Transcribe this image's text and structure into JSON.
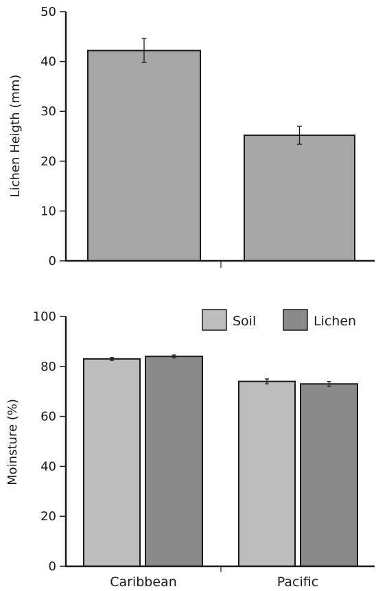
{
  "chart_data": [
    {
      "type": "bar",
      "ylabel": "Lichen Heigth (mm)",
      "xlabel": "",
      "categories": [
        "",
        ""
      ],
      "values": [
        42.2,
        25.2
      ],
      "errors": [
        2.4,
        1.8
      ],
      "ylim": [
        0,
        50
      ],
      "yticks": [
        "0",
        "10",
        "20",
        "30",
        "40",
        "50"
      ],
      "bar_color": "#a6a6a6",
      "grid": false
    },
    {
      "type": "bar",
      "ylabel": "Moinsture (%)",
      "xlabel": "",
      "categories": [
        "Caribbean",
        "Pacific"
      ],
      "ylim": [
        0,
        100
      ],
      "yticks": [
        "0",
        "20",
        "40",
        "60",
        "80",
        "100"
      ],
      "legend_position": "top-right",
      "grid": false,
      "series": [
        {
          "name": "Soil",
          "values": [
            83,
            74
          ],
          "errors": [
            0.6,
            1.0
          ],
          "color": "#bdbdbd"
        },
        {
          "name": "Lichen",
          "values": [
            84,
            73
          ],
          "errors": [
            0.6,
            1.0
          ],
          "color": "#8a8a8a"
        }
      ]
    }
  ]
}
